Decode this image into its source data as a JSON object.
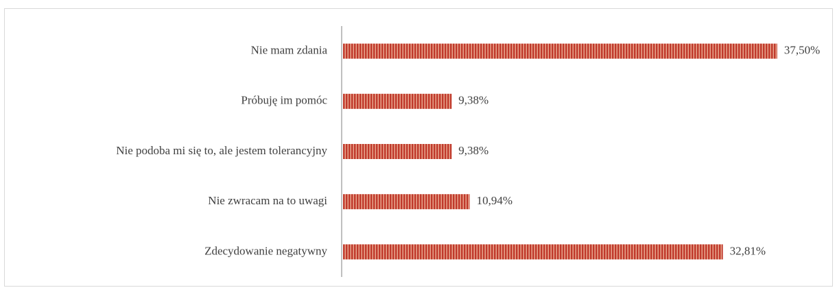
{
  "chart_data": {
    "type": "bar",
    "orientation": "horizontal",
    "categories": [
      "Nie mam zdania",
      "Próbuję im pomóc",
      "Nie podoba mi się to, ale jestem tolerancyjny",
      "Nie zwracam na to uwagi",
      "Zdecydowanie negatywny"
    ],
    "values": [
      37.5,
      9.38,
      9.38,
      10.94,
      32.81
    ],
    "value_labels": [
      "37,50%",
      "9,38%",
      "9,38%",
      "10,94%",
      "32,81%"
    ],
    "color": "#c0392b",
    "xlim": [
      0,
      40
    ]
  }
}
